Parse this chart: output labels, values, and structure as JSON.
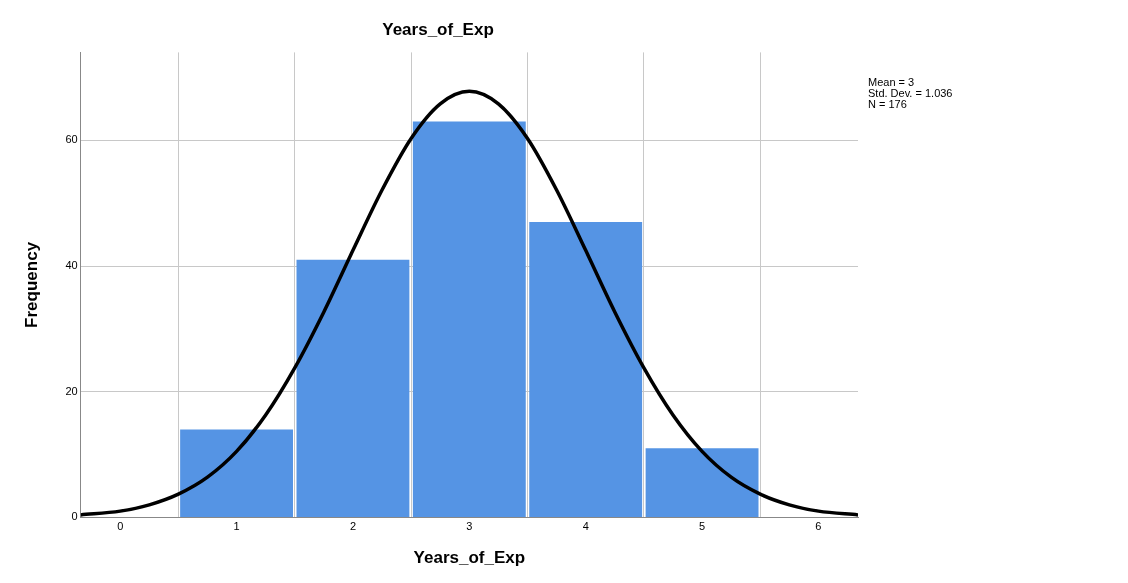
{
  "chart_data": {
    "type": "histogram",
    "title": "Years_of_Exp",
    "xlabel": "Years_of_Exp",
    "ylabel": "Frequency",
    "series": [
      {
        "bins": [
          0.5,
          1.5,
          2.5,
          3.5,
          4.5,
          5.5
        ],
        "values": [
          14,
          41,
          63,
          47,
          11
        ],
        "color": "#5594e4"
      },
      {
        "type": "line",
        "color": "#000000",
        "x": [
          -0.34,
          0,
          0.25,
          0.5,
          0.75,
          1,
          1.25,
          1.5,
          1.75,
          2,
          2.25,
          2.5,
          2.75,
          3,
          3.25,
          3.5,
          3.75,
          4,
          4.25,
          4.5,
          4.75,
          5,
          5.25,
          5.5,
          5.75,
          6,
          6.34
        ],
        "values": [
          0.4,
          1,
          2,
          3.7,
          6.4,
          10.5,
          16.3,
          23.8,
          32.7,
          42.5,
          52.1,
          60.3,
          65.8,
          67.8,
          65.8,
          60.3,
          52.1,
          42.5,
          32.7,
          23.8,
          16.3,
          10.5,
          6.4,
          3.7,
          2,
          1,
          0.4
        ]
      }
    ],
    "xlim": [
      -0.34,
      6.34
    ],
    "xticks": [
      0,
      1,
      2,
      3,
      4,
      5,
      6
    ],
    "ylim": [
      0,
      74
    ],
    "yticks": [
      0,
      20,
      40,
      60
    ],
    "grid": true,
    "legend": false,
    "annotations": [
      "Mean = 3",
      "Std. Dev. = 1.036",
      "N = 176"
    ]
  }
}
